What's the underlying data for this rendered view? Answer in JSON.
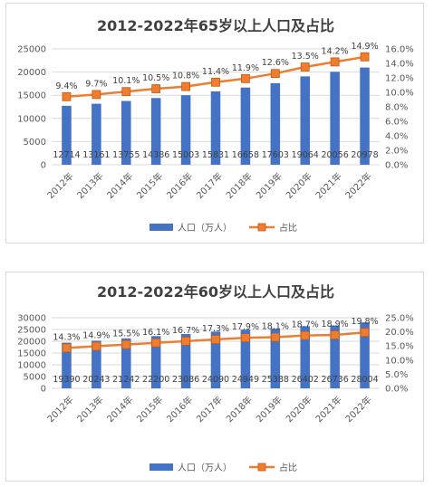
{
  "chart_data": [
    {
      "type": "bar",
      "title": "2012-2022年65岁以上人口及占比",
      "categories": [
        "2012年",
        "2013年",
        "2014年",
        "2015年",
        "2016年",
        "2017年",
        "2018年",
        "2019年",
        "2020年",
        "2021年",
        "2022年"
      ],
      "series": [
        {
          "name": "人口（万人）",
          "type": "bar",
          "axis": "left",
          "values": [
            12714,
            13161,
            13755,
            14386,
            15003,
            15831,
            16658,
            17603,
            19064,
            20056,
            20978
          ],
          "color": "#4472c4"
        },
        {
          "name": "占比",
          "type": "line",
          "axis": "right",
          "values": [
            9.4,
            9.7,
            10.1,
            10.5,
            10.8,
            11.4,
            11.9,
            12.6,
            13.5,
            14.2,
            14.9
          ],
          "labels": [
            "9.4%",
            "9.7%",
            "10.1%",
            "10.5%",
            "10.8%",
            "11.4%",
            "11.9%",
            "12.6%",
            "13.5%",
            "14.2%",
            "14.9%"
          ],
          "color": "#ed7d31"
        }
      ],
      "left_axis": {
        "ylim": [
          0,
          25000
        ],
        "ticks": [
          "0",
          "5000",
          "10000",
          "15000",
          "20000",
          "25000"
        ]
      },
      "right_axis": {
        "ylim": [
          0,
          16
        ],
        "ticks": [
          "0.0%",
          "2.0%",
          "4.0%",
          "6.0%",
          "8.0%",
          "10.0%",
          "12.0%",
          "14.0%",
          "16.0%"
        ]
      },
      "legend": "bottom",
      "grid": true
    },
    {
      "type": "bar",
      "title": "2012-2022年60岁以上人口及占比",
      "categories": [
        "2012年",
        "2013年",
        "2014年",
        "2015年",
        "2016年",
        "2017年",
        "2018年",
        "2019年",
        "2020年",
        "2021年",
        "2022年"
      ],
      "series": [
        {
          "name": "人口（万人）",
          "type": "bar",
          "axis": "left",
          "values": [
            19390,
            20243,
            21242,
            22200,
            23086,
            24090,
            24949,
            25388,
            26402,
            26736,
            28004
          ],
          "color": "#4472c4"
        },
        {
          "name": "占比",
          "type": "line",
          "axis": "right",
          "values": [
            14.3,
            14.9,
            15.5,
            16.1,
            16.7,
            17.3,
            17.9,
            18.1,
            18.7,
            18.9,
            19.8
          ],
          "labels": [
            "14.3%",
            "14.9%",
            "15.5%",
            "16.1%",
            "16.7%",
            "17.3%",
            "17.9%",
            "18.1%",
            "18.7%",
            "18.9%",
            "19.8%"
          ],
          "color": "#ed7d31"
        }
      ],
      "left_axis": {
        "ylim": [
          0,
          30000
        ],
        "ticks": [
          "0",
          "5000",
          "10000",
          "15000",
          "20000",
          "25000",
          "30000"
        ]
      },
      "right_axis": {
        "ylim": [
          0,
          25
        ],
        "ticks": [
          "0.0%",
          "5.0%",
          "10.0%",
          "15.0%",
          "20.0%",
          "25.0%"
        ]
      },
      "legend": "bottom",
      "grid": true
    }
  ]
}
